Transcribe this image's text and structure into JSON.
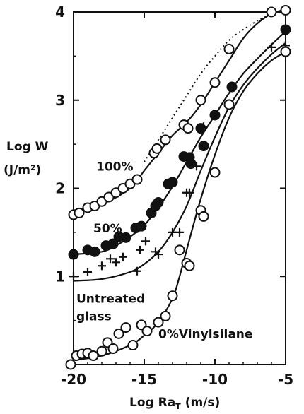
{
  "chart_data": {
    "type": "scatter",
    "xlabel": "Log Ra",
    "xlabel_sub": "T",
    "xlabel_unit": "(m/s)",
    "ylabel_line1": "Log W",
    "ylabel_line2": "(J/m²)",
    "xlim": [
      -20,
      -5
    ],
    "ylim": [
      0,
      4
    ],
    "x_ticks": [
      -20,
      -15,
      -10,
      -5
    ],
    "x_tick_labels": [
      "-20",
      "-15",
      "-10",
      "-5"
    ],
    "y_ticks": [
      1,
      2,
      3,
      4
    ],
    "y_tick_labels": [
      "1",
      "2",
      "3",
      "4"
    ],
    "grid": false,
    "annotations": [
      {
        "text": "100%",
        "x": -18.4,
        "y": 2.2
      },
      {
        "text": "50%",
        "x": -18.6,
        "y": 1.5
      },
      {
        "text": "Untreated",
        "x": -19.8,
        "y": 0.7
      },
      {
        "text": "glass",
        "x": -19.8,
        "y": 0.5
      },
      {
        "text": "0%Vinylsilane",
        "x": -14.0,
        "y": 0.3
      }
    ],
    "series": [
      {
        "marker": "open-circle",
        "points": [
          [
            -20,
            1.7
          ],
          [
            -19.6,
            1.72
          ],
          [
            -19,
            1.78
          ],
          [
            -18.5,
            1.8
          ],
          [
            -18,
            1.85
          ],
          [
            -17.5,
            1.9
          ],
          [
            -17,
            1.95
          ],
          [
            -16.5,
            2.0
          ],
          [
            -16,
            2.05
          ],
          [
            -15.5,
            2.1
          ],
          [
            -14.3,
            2.4
          ],
          [
            -14.1,
            2.45
          ],
          [
            -13.5,
            2.55
          ],
          [
            -12.2,
            2.72
          ],
          [
            -11.9,
            2.68
          ],
          [
            -11,
            3.0
          ],
          [
            -10,
            3.2
          ],
          [
            -9,
            3.58
          ],
          [
            -6,
            4.0
          ],
          [
            -5,
            4.02
          ]
        ],
        "fit": [
          [
            -20,
            1.75
          ],
          [
            -18,
            1.82
          ],
          [
            -16,
            2.0
          ],
          [
            -15,
            2.2
          ],
          [
            -14,
            2.4
          ],
          [
            -13,
            2.6
          ],
          [
            -12,
            2.75
          ],
          [
            -11,
            2.95
          ],
          [
            -10,
            3.2
          ],
          [
            -9,
            3.45
          ],
          [
            -8,
            3.7
          ],
          [
            -7,
            3.87
          ],
          [
            -6,
            3.98
          ],
          [
            -5,
            4.03
          ]
        ]
      },
      {
        "marker": "filled-circle",
        "points": [
          [
            -20,
            1.25
          ],
          [
            -19,
            1.3
          ],
          [
            -18.5,
            1.28
          ],
          [
            -17.7,
            1.35
          ],
          [
            -17.2,
            1.37
          ],
          [
            -16.8,
            1.45
          ],
          [
            -16.3,
            1.44
          ],
          [
            -15.6,
            1.55
          ],
          [
            -15.2,
            1.57
          ],
          [
            -14.5,
            1.72
          ],
          [
            -14.2,
            1.8
          ],
          [
            -14,
            1.84
          ],
          [
            -13.3,
            2.05
          ],
          [
            -13,
            2.07
          ],
          [
            -12.2,
            2.36
          ],
          [
            -11.8,
            2.35
          ],
          [
            -11.7,
            2.28
          ],
          [
            -11,
            2.68
          ],
          [
            -10.8,
            2.48
          ],
          [
            -10,
            2.83
          ],
          [
            -8.8,
            3.15
          ],
          [
            -5,
            3.8
          ]
        ],
        "fit": [
          [
            -20,
            1.25
          ],
          [
            -18,
            1.28
          ],
          [
            -17,
            1.35
          ],
          [
            -16,
            1.45
          ],
          [
            -15,
            1.58
          ],
          [
            -14,
            1.78
          ],
          [
            -13,
            2.02
          ],
          [
            -12,
            2.3
          ],
          [
            -11,
            2.58
          ],
          [
            -10,
            2.83
          ],
          [
            -9,
            3.08
          ],
          [
            -8,
            3.3
          ],
          [
            -7,
            3.47
          ],
          [
            -6,
            3.63
          ],
          [
            -5,
            3.78
          ]
        ]
      },
      {
        "marker": "plus",
        "points": [
          [
            -20,
            1.0
          ],
          [
            -19,
            1.05
          ],
          [
            -18,
            1.12
          ],
          [
            -17.4,
            1.2
          ],
          [
            -17,
            1.16
          ],
          [
            -16.5,
            1.22
          ],
          [
            -15.5,
            1.06
          ],
          [
            -15.3,
            1.3
          ],
          [
            -14.9,
            1.4
          ],
          [
            -14.2,
            1.28
          ],
          [
            -14,
            1.25
          ],
          [
            -13,
            1.5
          ],
          [
            -12.5,
            1.5
          ],
          [
            -12,
            1.95
          ],
          [
            -11.8,
            1.95
          ],
          [
            -11.3,
            2.25
          ],
          [
            -10.8,
            2.7
          ],
          [
            -6,
            3.6
          ],
          [
            -5,
            3.62
          ]
        ],
        "fit": [
          [
            -20,
            0.95
          ],
          [
            -18,
            0.97
          ],
          [
            -16,
            1.05
          ],
          [
            -15,
            1.14
          ],
          [
            -14,
            1.28
          ],
          [
            -13,
            1.5
          ],
          [
            -12,
            1.8
          ],
          [
            -11,
            2.2
          ],
          [
            -10,
            2.58
          ],
          [
            -9,
            2.92
          ],
          [
            -8,
            3.17
          ],
          [
            -7,
            3.36
          ],
          [
            -6,
            3.52
          ],
          [
            -5,
            3.65
          ]
        ]
      },
      {
        "marker": "open-circle",
        "points": [
          [
            -20.2,
            0.0
          ],
          [
            -19.8,
            0.1
          ],
          [
            -19.4,
            0.12
          ],
          [
            -19,
            0.13
          ],
          [
            -18.6,
            0.1
          ],
          [
            -18,
            0.15
          ],
          [
            -17.6,
            0.25
          ],
          [
            -17.2,
            0.18
          ],
          [
            -16.8,
            0.35
          ],
          [
            -16.3,
            0.42
          ],
          [
            -15.8,
            0.22
          ],
          [
            -15.2,
            0.45
          ],
          [
            -14.8,
            0.38
          ],
          [
            -14,
            0.48
          ],
          [
            -13.5,
            0.55
          ],
          [
            -13,
            0.78
          ],
          [
            -12.5,
            1.3
          ],
          [
            -12,
            1.15
          ],
          [
            -11.8,
            1.12
          ],
          [
            -11,
            1.75
          ],
          [
            -10.8,
            1.68
          ],
          [
            -10,
            2.18
          ],
          [
            -9,
            2.95
          ],
          [
            -5,
            3.55
          ]
        ],
        "fit": [
          [
            -20,
            0.05
          ],
          [
            -18,
            0.1
          ],
          [
            -16,
            0.22
          ],
          [
            -15,
            0.33
          ],
          [
            -14,
            0.48
          ],
          [
            -13,
            0.75
          ],
          [
            -12.5,
            1.0
          ],
          [
            -12,
            1.3
          ],
          [
            -11,
            1.88
          ],
          [
            -10,
            2.38
          ],
          [
            -9,
            2.8
          ],
          [
            -8,
            3.1
          ],
          [
            -7,
            3.3
          ],
          [
            -6,
            3.45
          ],
          [
            -5,
            3.55
          ]
        ]
      }
    ],
    "envelope": [
      [
        -15,
        2.3
      ],
      [
        -14,
        2.55
      ],
      [
        -13,
        2.8
      ],
      [
        -12,
        3.05
      ],
      [
        -11,
        3.3
      ],
      [
        -10,
        3.5
      ],
      [
        -9,
        3.68
      ],
      [
        -8,
        3.8
      ],
      [
        -7,
        3.9
      ],
      [
        -6,
        3.98
      ]
    ]
  }
}
